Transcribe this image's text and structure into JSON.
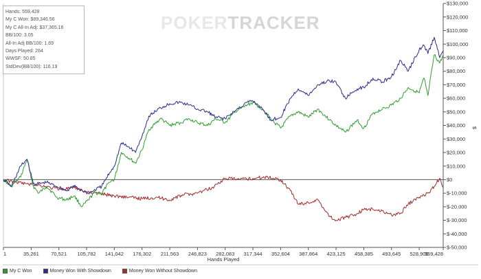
{
  "stats": {
    "hands": "Hands: 559,428",
    "won": "My C Won: $89,346.56",
    "allin": "My C All-In Adj: $37,365.16",
    "bb100": "BB/100: 3.05",
    "allin_bb100": "All-In Adj BB/100: 1.69",
    "days": "Days Played: 264",
    "wwsf": "WWSF: 50.85",
    "stddev": "StdDev(BB/100): 116.19"
  },
  "watermark": {
    "part1": "POKER",
    "part2": "TRACKER"
  },
  "colors": {
    "won": "#2f9e2f",
    "showdown": "#2b2b8c",
    "nonshowdown": "#a52a2a",
    "zero_line": "#555555"
  },
  "chart_data": {
    "type": "line",
    "xlabel": "Hands Played",
    "ylabel": "$",
    "xlim": [
      1,
      559428
    ],
    "ylim": [
      -50000,
      130000
    ],
    "x_ticks": [
      1,
      35261,
      70521,
      105782,
      141042,
      176302,
      211563,
      246823,
      282083,
      317344,
      352604,
      387864,
      423125,
      458385,
      493645,
      528906,
      559428
    ],
    "x_tick_labels": [
      "1",
      "35,261",
      "70,521",
      "105,782",
      "141,042",
      "176,302",
      "211,563",
      "246,823",
      "282,083",
      "317,344",
      "352,604",
      "387,864",
      "423,125",
      "458,385",
      "493,645",
      "528,906",
      "559,428"
    ],
    "y_ticks": [
      -50000,
      -40000,
      -30000,
      -20000,
      -10000,
      0,
      10000,
      20000,
      30000,
      40000,
      50000,
      60000,
      70000,
      80000,
      90000,
      100000,
      110000,
      120000,
      130000
    ],
    "y_tick_labels": [
      "$-50,000",
      "$-40,000",
      "$-30,000",
      "$-20,000",
      "$-10,000",
      "$0",
      "$10,000",
      "$20,000",
      "$30,000",
      "$40,000",
      "$50,000",
      "$60,000",
      "$70,000",
      "$80,000",
      "$90,000",
      "$100,000",
      "$110,000",
      "$120,000",
      "$130,000"
    ],
    "grid": false,
    "legend_position": "bottom",
    "series": [
      {
        "name": "My C Won",
        "color": "#2f9e2f",
        "x": [
          1,
          10000,
          22000,
          30000,
          38000,
          45000,
          55000,
          68000,
          80000,
          90000,
          100000,
          108000,
          115000,
          125000,
          135000,
          141042,
          150000,
          162000,
          168000,
          176302,
          185000,
          200000,
          211563,
          225000,
          236000,
          246823,
          260000,
          270000,
          282083,
          295000,
          310000,
          317344,
          330000,
          340000,
          352604,
          365000,
          375000,
          387864,
          400000,
          415000,
          423125,
          435000,
          450000,
          458385,
          470000,
          482000,
          493645,
          505000,
          515000,
          528906,
          535000,
          540000,
          548000,
          555000,
          559428
        ],
        "y": [
          0,
          -5000,
          2000,
          15000,
          -5000,
          -10000,
          -5000,
          -13000,
          -15000,
          -12000,
          -20000,
          -15000,
          -10000,
          -10000,
          -2000,
          0,
          20000,
          15000,
          12000,
          22000,
          37000,
          45000,
          40000,
          42000,
          45000,
          42000,
          40000,
          45000,
          42000,
          50000,
          55000,
          57000,
          52000,
          45000,
          38000,
          47000,
          50000,
          46000,
          52000,
          44000,
          40000,
          35000,
          44000,
          38000,
          49000,
          52000,
          55000,
          60000,
          68000,
          64000,
          75000,
          62000,
          92000,
          86000,
          92000
        ]
      },
      {
        "name": "Money Won With Showdown",
        "color": "#2b2b8c",
        "x": [
          1,
          10000,
          22000,
          30000,
          38000,
          45000,
          55000,
          68000,
          80000,
          90000,
          100000,
          108000,
          115000,
          125000,
          135000,
          141042,
          150000,
          162000,
          168000,
          176302,
          185000,
          200000,
          211563,
          225000,
          236000,
          246823,
          260000,
          270000,
          282083,
          295000,
          310000,
          317344,
          330000,
          340000,
          352604,
          365000,
          375000,
          387864,
          400000,
          415000,
          423125,
          435000,
          450000,
          458385,
          470000,
          482000,
          493645,
          505000,
          515000,
          528906,
          535000,
          540000,
          548000,
          555000,
          559428
        ],
        "y": [
          0,
          -5000,
          10000,
          15000,
          -3000,
          -3000,
          -2000,
          -5000,
          -8000,
          -5000,
          -8000,
          -10000,
          -8000,
          -5000,
          5000,
          10000,
          27000,
          23000,
          20000,
          32000,
          47000,
          53000,
          56000,
          57000,
          55000,
          52000,
          50000,
          46000,
          45000,
          51000,
          57000,
          58000,
          52000,
          44000,
          46000,
          60000,
          67000,
          62000,
          70000,
          73000,
          72000,
          60000,
          67000,
          68000,
          75000,
          72000,
          76000,
          88000,
          80000,
          96000,
          99000,
          93000,
          105000,
          90000,
          95000
        ]
      },
      {
        "name": "Money Won Without Showdown",
        "color": "#a52a2a",
        "x": [
          1,
          15000,
          30000,
          45000,
          60000,
          75000,
          90000,
          105782,
          120000,
          141042,
          160000,
          176302,
          195000,
          211563,
          230000,
          246823,
          265000,
          282083,
          300000,
          317344,
          335000,
          352604,
          365000,
          375000,
          387864,
          400000,
          415000,
          423125,
          435000,
          450000,
          458385,
          470000,
          482000,
          493645,
          505000,
          515000,
          528906,
          540000,
          548000,
          555000,
          559428
        ],
        "y": [
          0,
          -2000,
          -3000,
          -4000,
          -6000,
          -7000,
          -6000,
          -9000,
          -10000,
          -12000,
          -13000,
          -14000,
          -13000,
          -15000,
          -11000,
          -10000,
          -6000,
          1000,
          0,
          1000,
          2000,
          0,
          -8000,
          -18000,
          -17000,
          -15000,
          -27000,
          -30000,
          -28000,
          -25000,
          -22000,
          -22000,
          -23000,
          -26000,
          -25000,
          -18000,
          -13000,
          -10000,
          -5000,
          1000,
          -6000
        ]
      }
    ]
  }
}
